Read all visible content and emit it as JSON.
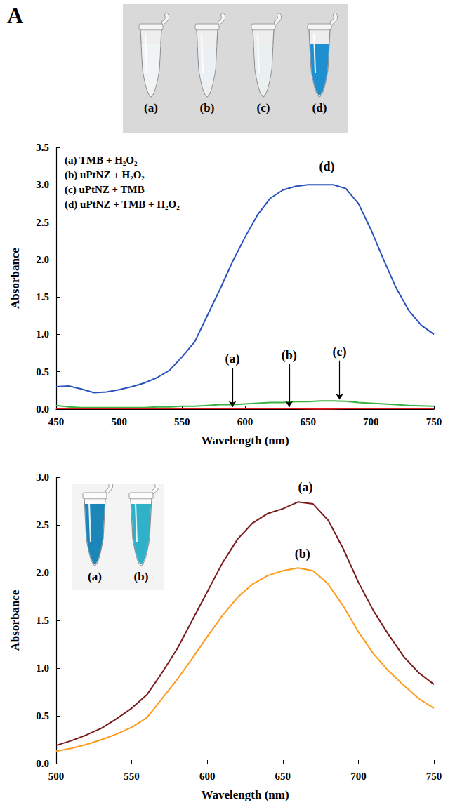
{
  "chart_data": [
    {
      "type": "line",
      "panel": "A",
      "photo_labels": [
        "(a)",
        "(b)",
        "(c)",
        "(d)"
      ],
      "x_label": "Wavelength (nm)",
      "y_label": "Absorbance",
      "xlim": [
        450,
        750
      ],
      "xticks": [
        450,
        500,
        550,
        600,
        650,
        700,
        750
      ],
      "ylim": [
        0,
        3.5
      ],
      "yticks": [
        {
          "value": 0,
          "label": "0.0"
        },
        0.5,
        {
          "value": 1,
          "label": "1.0"
        },
        1.5,
        {
          "value": 2,
          "label": "2.0"
        },
        2.5,
        {
          "value": 3,
          "label": "3.0"
        },
        3.5
      ],
      "grid": false,
      "legend": "upper left",
      "x": [
        450,
        460,
        470,
        480,
        490,
        500,
        510,
        520,
        530,
        540,
        550,
        560,
        570,
        580,
        590,
        600,
        610,
        620,
        630,
        640,
        650,
        660,
        670,
        680,
        690,
        700,
        710,
        720,
        730,
        740,
        750
      ],
      "series": [
        {
          "name": "(a)",
          "description": "TMB + H₂O₂",
          "color": "#8b1a1a",
          "values": [
            0.01,
            0.01,
            0.01,
            0.01,
            0.01,
            0.01,
            0.01,
            0.01,
            0.01,
            0.01,
            0.01,
            0.01,
            0.01,
            0.01,
            0.01,
            0.01,
            0.01,
            0.01,
            0.01,
            0.01,
            0.01,
            0.01,
            0.01,
            0.01,
            0.01,
            0.01,
            0.01,
            0.01,
            0.01,
            0.01,
            0.01
          ]
        },
        {
          "name": "(b)",
          "description": "uPtNZ + H₂O₂",
          "color": "#e41a1c",
          "values": [
            0.01,
            0.01,
            0.01,
            0.01,
            0.01,
            0.01,
            0.01,
            0.01,
            0.01,
            0.01,
            0.01,
            0.01,
            0.01,
            0.01,
            0.01,
            0.01,
            0.01,
            0.01,
            0.01,
            0.01,
            0.005,
            0.003,
            0.005,
            0.01,
            0.01,
            0.01,
            0.01,
            0.01,
            0.01,
            0.01,
            0.01
          ]
        },
        {
          "name": "(c)",
          "description": "uPtNZ + TMB",
          "color": "#3cb043",
          "values": [
            0.05,
            0.03,
            0.02,
            0.02,
            0.02,
            0.02,
            0.02,
            0.02,
            0.03,
            0.03,
            0.04,
            0.04,
            0.05,
            0.06,
            0.06,
            0.07,
            0.08,
            0.09,
            0.09,
            0.1,
            0.1,
            0.11,
            0.11,
            0.105,
            0.09,
            0.08,
            0.07,
            0.06,
            0.05,
            0.045,
            0.04
          ]
        },
        {
          "name": "(d)",
          "description": "uPtNZ + TMB + H₂O₂",
          "color": "#2a52be",
          "values": [
            0.3,
            0.31,
            0.27,
            0.22,
            0.23,
            0.26,
            0.3,
            0.35,
            0.42,
            0.52,
            0.7,
            0.9,
            1.25,
            1.6,
            1.97,
            2.3,
            2.6,
            2.82,
            2.93,
            2.98,
            3.0,
            3.0,
            3.0,
            2.95,
            2.75,
            2.4,
            2.0,
            1.62,
            1.32,
            1.12,
            1.0
          ]
        }
      ],
      "annotations": [
        {
          "text": "(a)",
          "x": 590,
          "y": 0.55,
          "arrow_to": 0.03
        },
        {
          "text": "(b)",
          "x": 635,
          "y": 0.6,
          "arrow_to": 0.03
        },
        {
          "text": "(c)",
          "x": 675,
          "y": 0.65,
          "arrow_to": 0.13
        },
        {
          "text": "(d)",
          "x": 665,
          "y": 3.25
        }
      ]
    },
    {
      "type": "line",
      "panel": "B",
      "photo_labels": [
        "(a)",
        "(b)"
      ],
      "x_label": "Wavelength (nm)",
      "y_label": "Absorbance",
      "xlim": [
        500,
        750
      ],
      "xticks": [
        500,
        550,
        600,
        650,
        700,
        750
      ],
      "ylim": [
        0,
        3
      ],
      "yticks": [
        {
          "value": 0,
          "label": "0.0"
        },
        0.5,
        {
          "value": 1,
          "label": "1.0"
        },
        1.5,
        {
          "value": 2,
          "label": "2.0"
        },
        2.5,
        {
          "value": 3,
          "label": "3.0"
        }
      ],
      "grid": false,
      "x": [
        500,
        510,
        520,
        530,
        540,
        550,
        560,
        570,
        580,
        590,
        600,
        610,
        620,
        630,
        640,
        650,
        660,
        670,
        680,
        690,
        700,
        710,
        720,
        730,
        740,
        750
      ],
      "series": [
        {
          "name": "(a)",
          "color": "#7b1a1a",
          "values": [
            0.19,
            0.24,
            0.3,
            0.37,
            0.47,
            0.58,
            0.72,
            0.95,
            1.2,
            1.5,
            1.8,
            2.1,
            2.35,
            2.52,
            2.62,
            2.67,
            2.74,
            2.72,
            2.55,
            2.25,
            1.9,
            1.6,
            1.35,
            1.12,
            0.95,
            0.83
          ]
        },
        {
          "name": "(b)",
          "color": "#ff9a1a",
          "values": [
            0.13,
            0.16,
            0.2,
            0.25,
            0.31,
            0.38,
            0.48,
            0.68,
            0.88,
            1.1,
            1.33,
            1.55,
            1.74,
            1.88,
            1.97,
            2.02,
            2.05,
            2.02,
            1.88,
            1.65,
            1.38,
            1.15,
            0.97,
            0.82,
            0.68,
            0.58
          ]
        }
      ],
      "annotations": [
        {
          "text": "(a)",
          "x": 665,
          "y": 2.9
        },
        {
          "text": "(b)",
          "x": 663,
          "y": 2.2
        }
      ]
    }
  ]
}
